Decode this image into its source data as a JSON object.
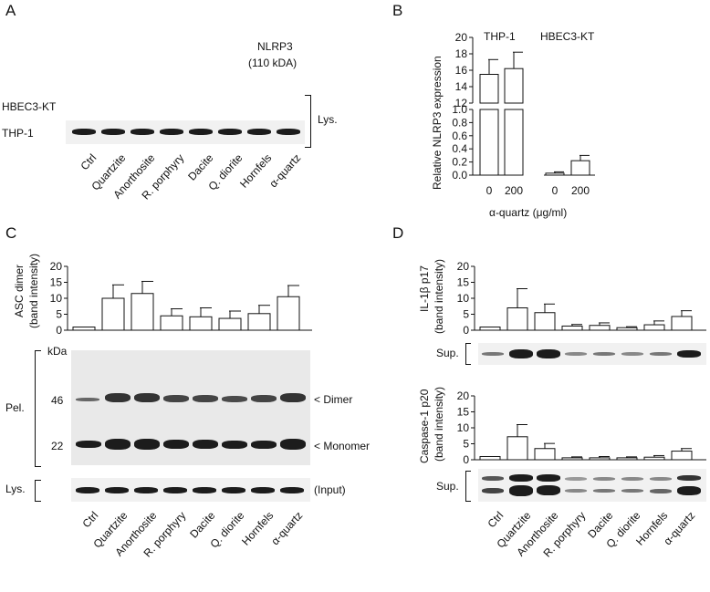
{
  "panels": {
    "A": {
      "letter": "A",
      "target": "NLRP3",
      "target_size": "(110 kDA)",
      "row_labels": [
        "HBEC3-KT",
        "THP-1"
      ],
      "fraction": "Lys.",
      "lanes": [
        "Ctrl",
        "Quartzite",
        "Anorthosite",
        "R. porphyry",
        "Dacite",
        "Q. diorite",
        "Hornfels",
        "α-quartz"
      ]
    },
    "B": {
      "letter": "B",
      "group_labels": [
        "THP-1",
        "HBEC3-KT"
      ],
      "ylabel": "Relative NLRP3 expression",
      "xlabel": "α-quartz (μg/ml)",
      "xticks": [
        "0",
        "200",
        "0",
        "200"
      ],
      "upper_ticks": [
        "12",
        "14",
        "16",
        "18",
        "20"
      ],
      "lower_ticks": [
        "0.0",
        "0.2",
        "0.4",
        "0.6",
        "0.8",
        "1.0"
      ]
    },
    "C": {
      "letter": "C",
      "ylabel_1": "ASC dimer",
      "ylabel_2": "(band intensity)",
      "yticks": [
        "0",
        "5",
        "10",
        "15",
        "20"
      ],
      "kda": "kDa",
      "markers": [
        "46",
        "22"
      ],
      "dimer": "< Dimer",
      "monomer": "< Monomer",
      "input": "(Input)",
      "pel": "Pel.",
      "lys": "Lys.",
      "lanes": [
        "Ctrl",
        "Quartzite",
        "Anorthosite",
        "R. porphyry",
        "Dacite",
        "Q. diorite",
        "Hornfels",
        "α-quartz"
      ]
    },
    "D": {
      "letter": "D",
      "top_ylabel_1": "IL-1β p17",
      "top_ylabel_2": "(band intensity)",
      "top_yticks": [
        "0",
        "5",
        "10",
        "15",
        "20"
      ],
      "bottom_ylabel_1": "Caspase-1 p20",
      "bottom_ylabel_2": "(band intensity)",
      "bottom_yticks": [
        "0",
        "5",
        "10",
        "15",
        "20"
      ],
      "sup_1": "Sup.",
      "sup_2": "Sup.",
      "lanes": [
        "Ctrl",
        "Quartzite",
        "Anorthosite",
        "R. porphyry",
        "Dacite",
        "Q. diorite",
        "Hornfels",
        "α-quartz"
      ]
    }
  },
  "chart_data": [
    {
      "type": "bar",
      "id": "B",
      "title": "",
      "ylabel": "Relative NLRP3 expression",
      "xlabel": "α-quartz (μg/ml)",
      "categories": [
        "THP-1 0",
        "THP-1 200",
        "HBEC3-KT 0",
        "HBEC3-KT 200"
      ],
      "values": [
        15.5,
        16.2,
        0.03,
        0.22
      ],
      "errors": [
        1.8,
        2.0,
        0.02,
        0.08
      ],
      "axis_break": {
        "lower": [
          0,
          1.0
        ],
        "upper": [
          12,
          20
        ]
      }
    },
    {
      "type": "bar",
      "id": "C",
      "ylabel": "ASC dimer (band intensity)",
      "categories": [
        "Ctrl",
        "Quartzite",
        "Anorthosite",
        "R. porphyry",
        "Dacite",
        "Q. diorite",
        "Hornfels",
        "α-quartz"
      ],
      "values": [
        1,
        10,
        11.5,
        4.5,
        4.2,
        3.7,
        5.2,
        10.5
      ],
      "errors": [
        0,
        4.2,
        3.8,
        2.2,
        2.8,
        2.3,
        2.6,
        3.5
      ],
      "ylim": [
        0,
        20
      ]
    },
    {
      "type": "bar",
      "id": "D-top",
      "ylabel": "IL-1β p17 (band intensity)",
      "categories": [
        "Ctrl",
        "Quartzite",
        "Anorthosite",
        "R. porphyry",
        "Dacite",
        "Q. diorite",
        "Hornfels",
        "α-quartz"
      ],
      "values": [
        1,
        7,
        5.5,
        1.3,
        1.5,
        0.8,
        1.7,
        4.3
      ],
      "errors": [
        0,
        6,
        2.7,
        0.5,
        0.8,
        0.3,
        1.2,
        1.8
      ],
      "ylim": [
        0,
        20
      ]
    },
    {
      "type": "bar",
      "id": "D-bottom",
      "ylabel": "Caspase-1 p20 (band intensity)",
      "categories": [
        "Ctrl",
        "Quartzite",
        "Anorthosite",
        "R. porphyry",
        "Dacite",
        "Q. diorite",
        "Hornfels",
        "α-quartz"
      ],
      "values": [
        1,
        7.2,
        3.5,
        0.6,
        0.6,
        0.6,
        0.8,
        2.7
      ],
      "errors": [
        0,
        3.8,
        1.6,
        0.3,
        0.4,
        0.3,
        0.5,
        0.8
      ],
      "ylim": [
        0,
        20
      ]
    }
  ]
}
